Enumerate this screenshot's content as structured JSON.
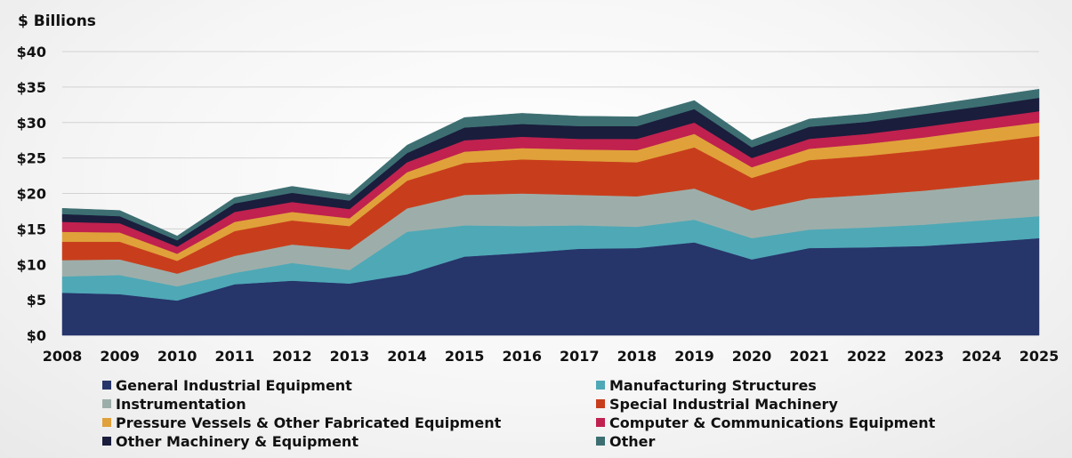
{
  "chart_data": {
    "type": "area",
    "stacked": true,
    "title": "",
    "ylabel": "$ Billions",
    "xlabel": "",
    "ylim": [
      0,
      40
    ],
    "yticks": [
      0,
      5,
      10,
      15,
      20,
      25,
      30,
      35,
      40
    ],
    "ytick_labels": [
      "$0",
      "$5",
      "$10",
      "$15",
      "$20",
      "$25",
      "$30",
      "$35",
      "$40"
    ],
    "grid": true,
    "legend_position": "bottom",
    "categories": [
      "2008",
      "2009",
      "2010",
      "2011",
      "2012",
      "2013",
      "2014",
      "2015",
      "2016",
      "2017",
      "2018",
      "2019",
      "2020",
      "2021",
      "2022",
      "2023",
      "2024",
      "2025"
    ],
    "series": [
      {
        "name": "General Industrial Equipment",
        "color": "#26356a",
        "values": [
          6.0,
          5.8,
          4.9,
          7.2,
          7.7,
          7.3,
          8.6,
          11.1,
          11.6,
          12.2,
          12.3,
          13.1,
          10.7,
          12.3,
          12.4,
          12.6,
          13.1,
          13.7
        ]
      },
      {
        "name": "Manufacturing Structures",
        "color": "#4fa8b6",
        "values": [
          2.3,
          2.7,
          2.0,
          1.6,
          2.5,
          1.9,
          6.0,
          4.4,
          3.8,
          3.3,
          3.0,
          3.2,
          3.0,
          2.6,
          2.8,
          3.0,
          3.1,
          3.1
        ]
      },
      {
        "name": "Instrumentation",
        "color": "#9daeaa",
        "values": [
          2.3,
          2.2,
          1.8,
          2.4,
          2.6,
          2.9,
          3.3,
          4.3,
          4.6,
          4.3,
          4.3,
          4.4,
          3.9,
          4.4,
          4.6,
          4.8,
          5.0,
          5.2
        ]
      },
      {
        "name": "Special Industrial Machinery",
        "color": "#c83e1c",
        "values": [
          2.6,
          2.5,
          1.8,
          3.5,
          3.4,
          3.3,
          3.9,
          4.5,
          4.8,
          4.8,
          4.8,
          5.8,
          4.6,
          5.4,
          5.5,
          5.7,
          5.9,
          6.1
        ]
      },
      {
        "name": "Pressure Vessels & Other Fabricated Equipment",
        "color": "#e0a13a",
        "values": [
          1.4,
          1.3,
          1.0,
          1.3,
          1.2,
          1.1,
          1.2,
          1.6,
          1.6,
          1.6,
          1.7,
          1.9,
          1.5,
          1.6,
          1.7,
          1.8,
          1.9,
          1.9
        ]
      },
      {
        "name": "Computer & Communications Equipment",
        "color": "#c0214f",
        "values": [
          1.4,
          1.3,
          1.0,
          1.4,
          1.4,
          1.3,
          1.4,
          1.6,
          1.6,
          1.5,
          1.6,
          1.6,
          1.3,
          1.4,
          1.4,
          1.5,
          1.5,
          1.6
        ]
      },
      {
        "name": "Other Machinery & Equipment",
        "color": "#1a1d3c",
        "values": [
          1.1,
          1.0,
          0.9,
          1.2,
          1.3,
          1.2,
          1.3,
          1.8,
          1.8,
          1.8,
          1.8,
          1.9,
          1.5,
          1.7,
          1.7,
          1.8,
          1.8,
          1.9
        ]
      },
      {
        "name": "Other",
        "color": "#3d6f72",
        "values": [
          0.8,
          0.8,
          0.6,
          0.8,
          0.9,
          0.8,
          1.1,
          1.4,
          1.5,
          1.4,
          1.3,
          1.2,
          1.0,
          1.1,
          1.1,
          1.1,
          1.2,
          1.2
        ]
      }
    ]
  }
}
